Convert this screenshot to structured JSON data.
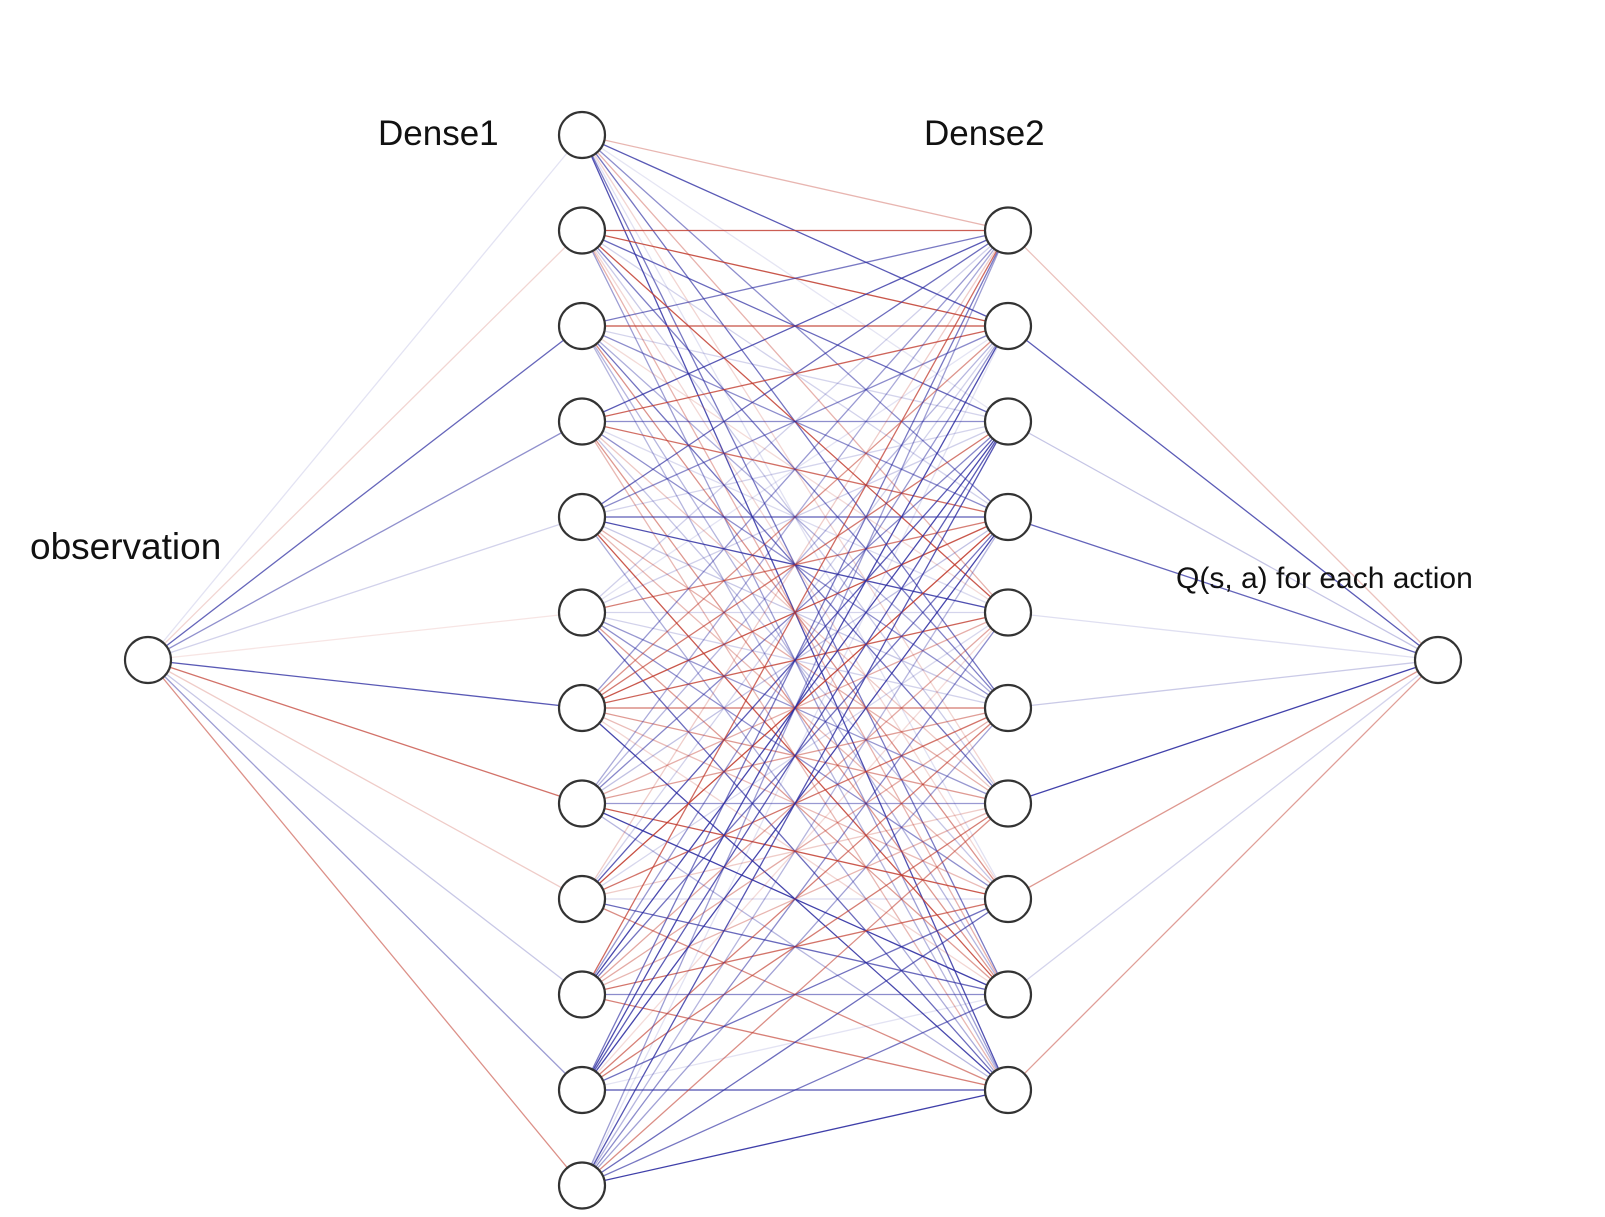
{
  "labels": {
    "input": "observation",
    "dense1": "Dense1",
    "dense2": "Dense2",
    "output": "Q(s, a) for each action"
  },
  "network": {
    "layer_sizes": [
      1,
      12,
      10,
      1
    ]
  },
  "colors": {
    "positive": "#c0392b",
    "negative": "#2a2aa0",
    "node_stroke": "#333333",
    "background": "#ffffff"
  }
}
